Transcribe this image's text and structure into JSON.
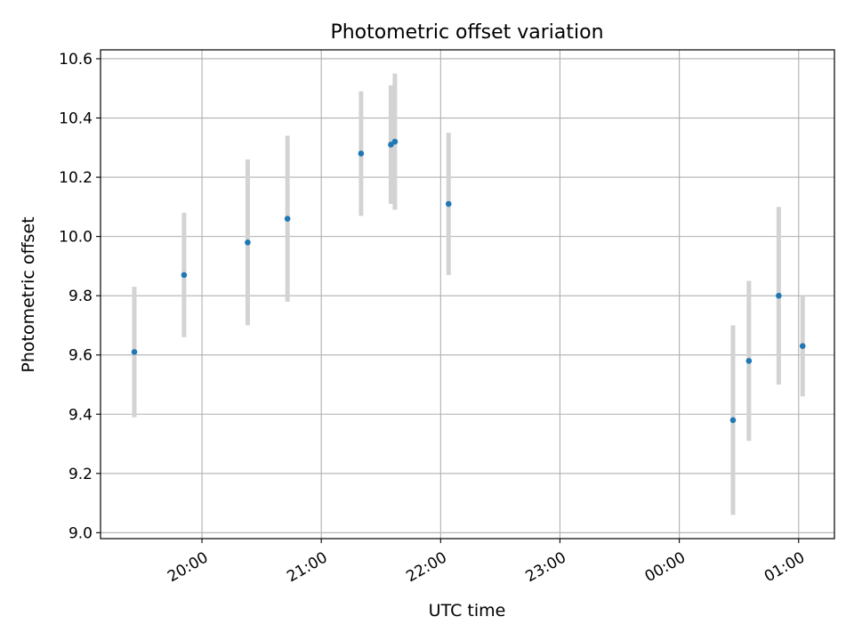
{
  "chart_data": {
    "type": "scatter",
    "title": "Photometric offset variation",
    "xlabel": "UTC time",
    "ylabel": "Photometric offset",
    "ylim": [
      8.98,
      10.63
    ],
    "xlim": [
      "19:09",
      "01:18"
    ],
    "grid": true,
    "x_ticks": [
      "20:00",
      "21:00",
      "22:00",
      "23:00",
      "00:00",
      "01:00"
    ],
    "y_ticks": [
      "9.0",
      "9.2",
      "9.4",
      "9.6",
      "9.8",
      "10.0",
      "10.2",
      "10.4",
      "10.6"
    ],
    "colors": {
      "point": "#1f77b4",
      "errorbar": "#d3d3d3",
      "grid": "#b0b0b0"
    },
    "points": [
      {
        "x": "19:26",
        "y": 9.61,
        "err": 0.22
      },
      {
        "x": "19:51",
        "y": 9.87,
        "err": 0.21
      },
      {
        "x": "20:23",
        "y": 9.98,
        "err": 0.28
      },
      {
        "x": "20:43",
        "y": 10.06,
        "err": 0.28
      },
      {
        "x": "21:20",
        "y": 10.28,
        "err": 0.21
      },
      {
        "x": "21:35",
        "y": 10.31,
        "err": 0.2
      },
      {
        "x": "21:37",
        "y": 10.32,
        "err": 0.23
      },
      {
        "x": "22:04",
        "y": 10.11,
        "err": 0.24
      },
      {
        "x": "00:27",
        "y": 9.38,
        "err": 0.32
      },
      {
        "x": "00:35",
        "y": 9.58,
        "err": 0.27
      },
      {
        "x": "00:50",
        "y": 9.8,
        "err": 0.3
      },
      {
        "x": "01:02",
        "y": 9.63,
        "err": 0.17
      }
    ]
  }
}
